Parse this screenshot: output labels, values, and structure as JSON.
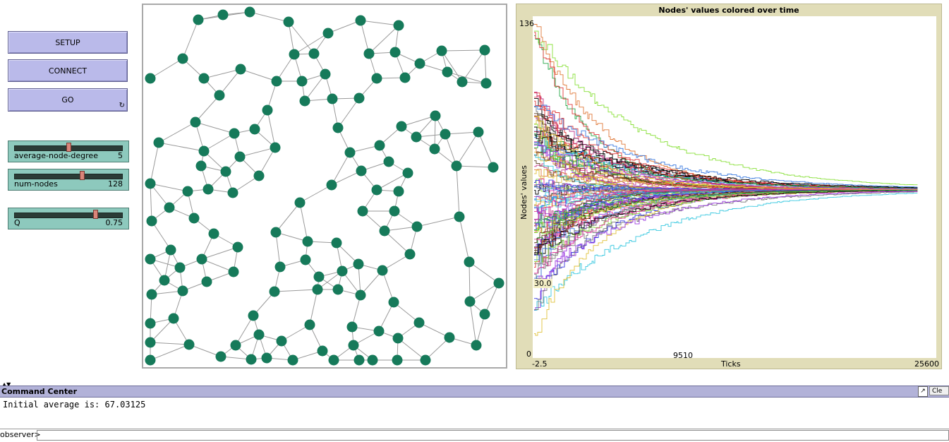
{
  "buttons": {
    "setup": "SETUP",
    "connect": "CONNECT",
    "go": "GO",
    "go_forever_icon": "forever-loop-icon"
  },
  "sliders": [
    {
      "name": "average-node-degree",
      "value": "5",
      "fraction": 0.5
    },
    {
      "name": "num-nodes",
      "value": "128",
      "fraction": 0.63
    },
    {
      "name": "Q",
      "value": "0.75",
      "fraction": 0.75
    }
  ],
  "network": {
    "node_color": "#167a5a",
    "link_color": "#9a9a9a",
    "node_count": 128
  },
  "plot": {
    "title": "Nodes' values colored over time",
    "ylabel": "Nodes' values",
    "xlabel": "Ticks",
    "y_max": "136",
    "y_min": "0",
    "x_min": "-2.5",
    "x_mid": "9510",
    "x_max": "25600",
    "annotation": "30.0"
  },
  "chart_data": {
    "type": "line",
    "title": "Nodes' values colored over time",
    "xlabel": "Ticks",
    "ylabel": "Nodes' values",
    "xlim": [
      -2.5,
      25600
    ],
    "ylim": [
      0,
      136
    ],
    "series_description": "many node value traces converging",
    "converged_value": 67.03125,
    "x_ticks": [
      "-2.5",
      "9510",
      "25600"
    ],
    "y_ticks": [
      "0",
      "136"
    ]
  },
  "command_center": {
    "title": "Command Center",
    "output": "Initial average is: 67.03125",
    "prompt": "observer>",
    "clear_label": "Cle",
    "expand_icon": "expand-icon"
  }
}
